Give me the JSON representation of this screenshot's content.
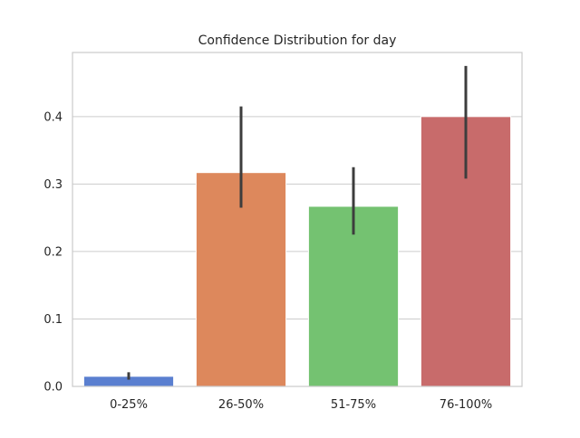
{
  "chart_data": {
    "type": "bar",
    "title": "Confidence Distribution for day",
    "xlabel": "",
    "ylabel": "",
    "categories": [
      "0-25%",
      "26-50%",
      "51-75%",
      "76-100%"
    ],
    "values": [
      0.015,
      0.317,
      0.267,
      0.4
    ],
    "error_bars": [
      [
        0.01,
        0.021
      ],
      [
        0.265,
        0.415
      ],
      [
        0.225,
        0.325
      ],
      [
        0.308,
        0.475
      ]
    ],
    "colors": [
      "#5a7fd0",
      "#dd885c",
      "#74c271",
      "#c86b6b"
    ],
    "ylim": [
      0,
      0.495
    ],
    "yticks": [
      0.0,
      0.1,
      0.2,
      0.3,
      0.4
    ],
    "ytick_labels": [
      "0.0",
      "0.1",
      "0.2",
      "0.3",
      "0.4"
    ],
    "grid": true,
    "grid_axis": "y",
    "legend": null
  }
}
